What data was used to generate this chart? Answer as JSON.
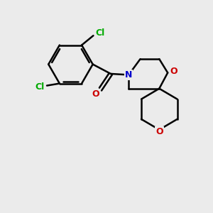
{
  "background_color": "#ebebeb",
  "bond_color": "#000000",
  "bond_width": 1.8,
  "atom_colors": {
    "Cl": "#00aa00",
    "O": "#cc0000",
    "N": "#0000cc",
    "C": "#000000"
  },
  "font_size": 9,
  "figsize": [
    3.0,
    3.0
  ],
  "dpi": 100
}
